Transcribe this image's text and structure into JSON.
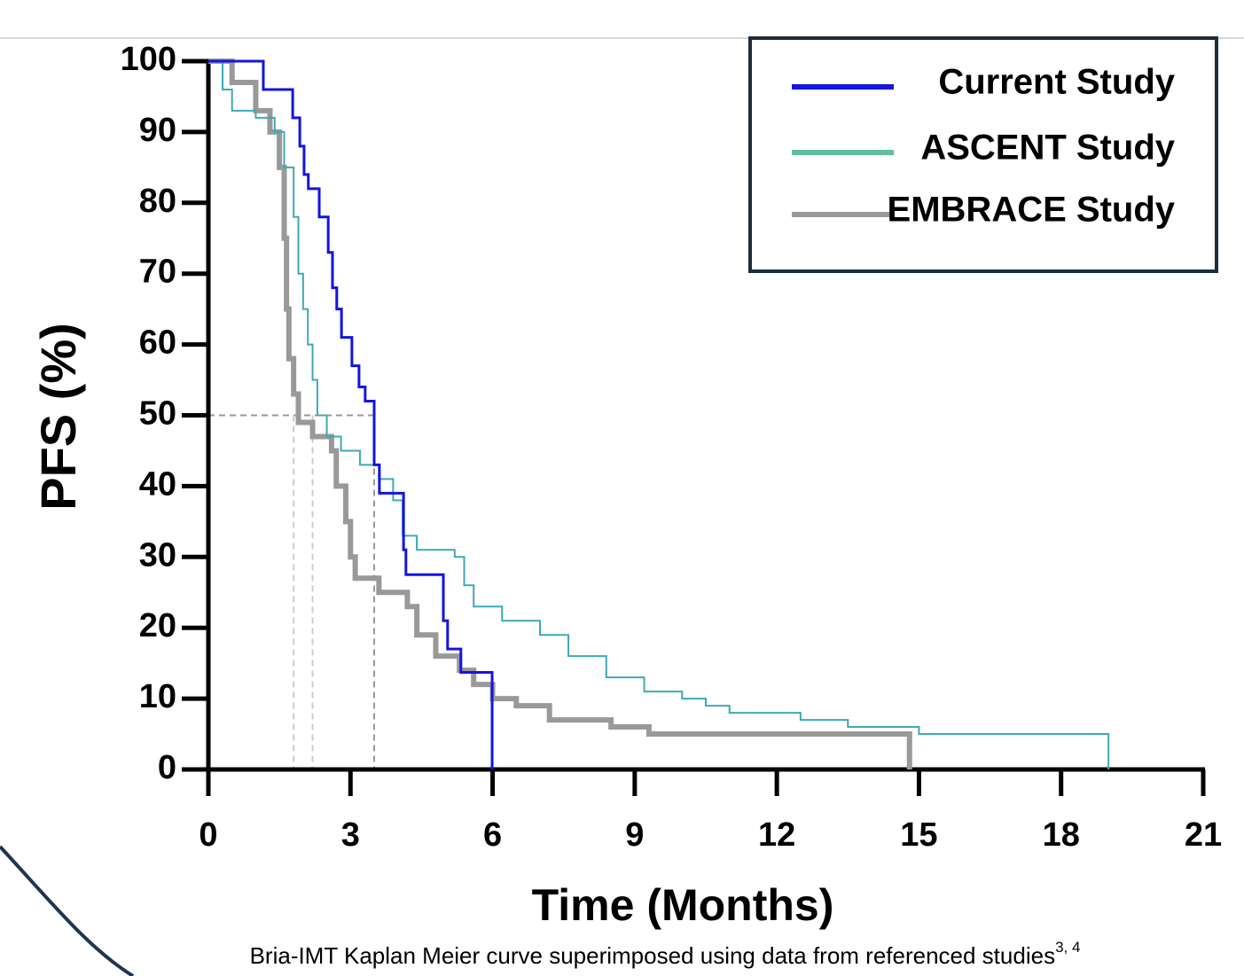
{
  "chart_data": {
    "type": "step",
    "y_label": "PFS (%)",
    "x_label": "Time (Months)",
    "caption": "Bria-IMT Kaplan Meier curve superimposed using data from referenced studies",
    "caption_superscript": "3, 4",
    "xlim": [
      0,
      21
    ],
    "xticks": [
      0,
      3,
      6,
      9,
      12,
      15,
      18,
      21
    ],
    "ylim": [
      0,
      100
    ],
    "yticks": [
      0,
      10,
      20,
      30,
      40,
      50,
      60,
      70,
      80,
      90,
      100
    ],
    "legend": "upper right",
    "reference_lines": {
      "y": 50,
      "x": [
        1.8,
        2.2,
        3.5
      ]
    },
    "series": [
      {
        "name": "Current Study",
        "color": "#1414e0",
        "x": [
          0,
          1.16,
          1.78,
          1.93,
          2.02,
          2.11,
          2.34,
          2.53,
          2.62,
          2.71,
          2.81,
          3.03,
          3.18,
          3.31,
          3.5,
          3.61,
          4.12,
          4.17,
          4.96,
          5.05,
          5.33,
          5.99
        ],
        "values": [
          100,
          96,
          92,
          88,
          84,
          82,
          78,
          73,
          68,
          65,
          61,
          57,
          54,
          52,
          43,
          39,
          31,
          27.5,
          21,
          17,
          13.7,
          0
        ]
      },
      {
        "name": "ASCENT Study",
        "color": "#3fa9b5",
        "x": [
          0,
          0.3,
          0.5,
          1.0,
          1.4,
          1.6,
          1.8,
          1.9,
          2.0,
          2.1,
          2.2,
          2.3,
          2.5,
          2.8,
          3.2,
          3.6,
          3.9,
          4.1,
          4.4,
          5.2,
          5.4,
          5.6,
          6.2,
          7.0,
          7.6,
          8.4,
          9.2,
          10.0,
          10.5,
          11.0,
          12.5,
          13.5,
          15.0,
          19.0
        ],
        "values": [
          100,
          96,
          93,
          92,
          90,
          85,
          78,
          70,
          65,
          60,
          55,
          50,
          47,
          45,
          43,
          41,
          38,
          33,
          31,
          30,
          26,
          23,
          21,
          19,
          16,
          13,
          11,
          10,
          9,
          8,
          7,
          6,
          5,
          0
        ]
      },
      {
        "name": "EMBRACE Study",
        "color": "#999999",
        "x": [
          0,
          0.5,
          1.0,
          1.3,
          1.5,
          1.6,
          1.65,
          1.7,
          1.8,
          1.9,
          2.2,
          2.6,
          2.7,
          2.9,
          3.0,
          3.1,
          3.6,
          4.2,
          4.4,
          4.8,
          5.3,
          5.6,
          6.0,
          6.5,
          7.2,
          8.5,
          9.3,
          14.8
        ],
        "values": [
          100,
          97,
          93,
          90,
          85,
          75,
          65,
          58,
          53,
          49,
          47,
          45,
          40,
          35,
          30,
          27,
          25,
          23,
          19,
          16,
          14,
          12,
          10,
          9,
          7,
          6,
          5,
          0
        ]
      }
    ]
  }
}
